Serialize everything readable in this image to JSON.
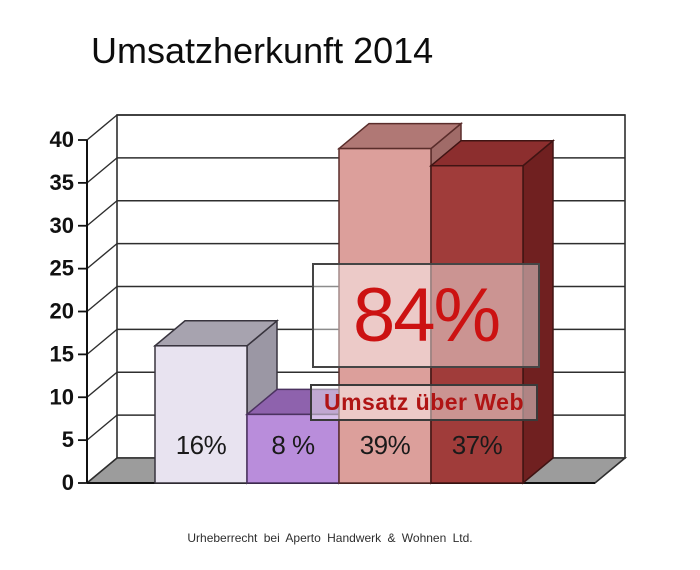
{
  "page": {
    "title": "Umsatzherkunft 2014"
  },
  "chart_data": {
    "type": "bar",
    "style": "3d",
    "title": "Umsatzherkunft 2014",
    "categories": [
      "",
      "",
      "",
      ""
    ],
    "values": [
      16,
      8,
      39,
      37
    ],
    "data_labels": [
      "16%",
      "8 %",
      "39%",
      "37%"
    ],
    "ylim": [
      0,
      40
    ],
    "ytick_step": 5,
    "yticks": [
      0,
      5,
      10,
      15,
      20,
      25,
      30,
      35,
      40
    ],
    "xlabel": "",
    "ylabel": "",
    "grid": true,
    "legend": "none",
    "annotations": [
      {
        "text": "84%"
      },
      {
        "text": "Umsatz über Web"
      }
    ]
  },
  "overlay": {
    "big_label": "84%",
    "caption": "Umsatz über Web"
  },
  "footer": {
    "copyright": "Urheberrecht bei Aperto Handwerk & Wohnen Ltd."
  },
  "colors": {
    "background": "#ffffff",
    "title_text": "#0d0d0d",
    "axis": "#111111",
    "grid": "#2e2e2e",
    "wall_fill": "#ffffff",
    "floor_fill": "#9c9c9c",
    "tick_label_text": "#111111",
    "bar_label_text": "#1a1a1a",
    "overlay_fill": "#ffffff",
    "overlay_opacity": 0.45,
    "overlay_border": "#454545",
    "big_label_red": "#cc1212",
    "caption_red": "#b01414",
    "bars": [
      {
        "front": "#e8e3f0",
        "top": "#a7a3af",
        "side": "#9b97a4",
        "edge": "#38343e"
      },
      {
        "front": "#b98ddb",
        "top": "#8e62ad",
        "side": "#855aa2",
        "edge": "#4b3260"
      },
      {
        "front": "#dc9f9b",
        "top": "#b07875",
        "side": "#a06b68",
        "edge": "#5a2d2b"
      },
      {
        "front": "#a03c3a",
        "top": "#8c2e2e",
        "side": "#702020",
        "edge": "#401413"
      }
    ]
  }
}
